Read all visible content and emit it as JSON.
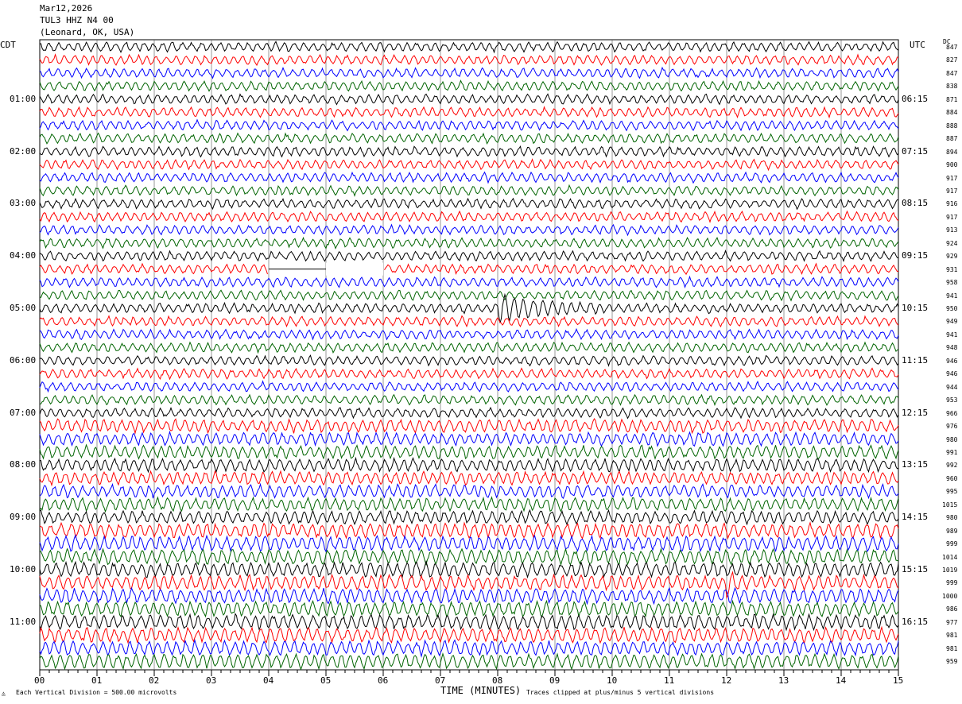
{
  "header": {
    "date": "Mar12,2026",
    "station": "TUL3 HHZ N4 00",
    "location": "(Leonard, OK, USA)"
  },
  "left_timezone": "CDT",
  "right_timezone": "UTC",
  "dc_label": "DC",
  "footer": {
    "scale_note": "Each Vertical Division =  500.00 microvolts",
    "xlabel": "TIME (MINUTES)",
    "clip_note": "Traces clipped at plus/minus 5 vertical divisions"
  },
  "chart_data": {
    "type": "line",
    "title": "",
    "xlabel": "TIME (MINUTES)",
    "xlim": [
      0,
      15
    ],
    "x_ticks": [
      "00",
      "01",
      "02",
      "03",
      "04",
      "05",
      "06",
      "07",
      "08",
      "09",
      "10",
      "11",
      "12",
      "13",
      "14",
      "15"
    ],
    "left_hour_labels": [
      "01:00",
      "02:00",
      "03:00",
      "04:00",
      "05:00",
      "06:00",
      "07:00",
      "08:00",
      "09:00",
      "10:00",
      "11:00"
    ],
    "right_hour_labels": [
      "06:15",
      "07:15",
      "08:15",
      "09:15",
      "10:15",
      "11:15",
      "12:15",
      "13:15",
      "14:15",
      "15:15",
      "16:15"
    ],
    "trace_colors": [
      "#000000",
      "#ff0000",
      "#0000ff",
      "#006400"
    ],
    "trace_count": 48,
    "minutes_per_trace": 15,
    "dc_offsets": [
      847,
      827,
      847,
      838,
      871,
      884,
      888,
      887,
      894,
      900,
      917,
      917,
      916,
      917,
      913,
      924,
      929,
      931,
      958,
      941,
      950,
      949,
      941,
      948,
      946,
      946,
      944,
      953,
      966,
      976,
      980,
      991,
      992,
      960,
      995,
      1015,
      980,
      989,
      999,
      1014,
      1019,
      999,
      1000,
      986,
      977,
      981,
      981,
      959
    ],
    "events": [
      {
        "trace": 20,
        "start_minute": 8.0,
        "end_minute": 10.0,
        "description": ""
      },
      {
        "trace": 41,
        "start_minute": 12.0,
        "end_minute": 12.3,
        "description": ""
      }
    ],
    "data_gaps": [
      {
        "trace": 17,
        "start_minute": 4.0,
        "end_minute": 6.0
      }
    ]
  }
}
